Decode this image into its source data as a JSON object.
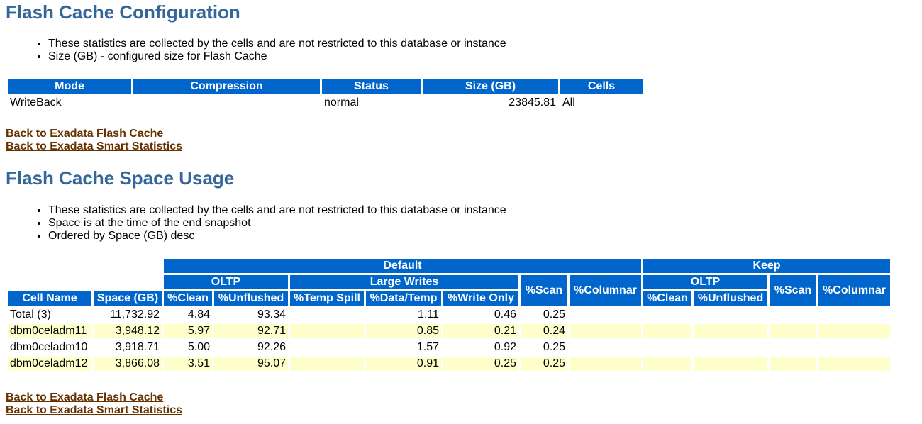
{
  "config": {
    "title": "Flash Cache Configuration",
    "notes": [
      "These statistics are collected by the cells and are not restricted to this database or instance",
      "Size (GB) - configured size for Flash Cache"
    ],
    "headers": [
      "Mode",
      "Compression",
      "Status",
      "Size (GB)",
      "Cells"
    ],
    "row": {
      "mode": "WriteBack",
      "compression": "",
      "status": "normal",
      "size": "23845.81",
      "cells": "All"
    },
    "links": [
      "Back to Exadata Flash Cache",
      "Back to Exadata Smart Statistics"
    ]
  },
  "space": {
    "title": "Flash Cache Space Usage",
    "notes": [
      "These statistics are collected by the cells and are not restricted to this database or instance",
      "Space is at the time of the end snapshot",
      "Ordered by Space (GB) desc"
    ],
    "group_headers": {
      "default": "Default",
      "keep": "Keep",
      "oltp": "OLTP",
      "large_writes": "Large Writes",
      "keep_oltp": "OLTP"
    },
    "col_headers": {
      "cell_name": "Cell Name",
      "space": "Space (GB)",
      "clean": "%Clean",
      "unflushed": "%Unflushed",
      "temp_spill": "%Temp Spill",
      "data_temp": "%Data/Temp",
      "write_only": "%Write Only",
      "scan": "%Scan",
      "columnar": "%Columnar",
      "keep_clean": "%Clean",
      "keep_unflushed": "%Unflushed",
      "keep_scan": "%Scan",
      "keep_columnar": "%Columnar"
    },
    "rows": [
      {
        "cell": "Total (3)",
        "space": "11,732.92",
        "clean": "4.84",
        "unflushed": "93.34",
        "temp_spill": "",
        "data_temp": "1.11",
        "write_only": "0.46",
        "scan": "0.25",
        "columnar": "",
        "k_clean": "",
        "k_unflushed": "",
        "k_scan": "",
        "k_columnar": ""
      },
      {
        "cell": "dbm0celadm11",
        "space": "3,948.12",
        "clean": "5.97",
        "unflushed": "92.71",
        "temp_spill": "",
        "data_temp": "0.85",
        "write_only": "0.21",
        "scan": "0.24",
        "columnar": "",
        "k_clean": "",
        "k_unflushed": "",
        "k_scan": "",
        "k_columnar": ""
      },
      {
        "cell": "dbm0celadm10",
        "space": "3,918.71",
        "clean": "5.00",
        "unflushed": "92.26",
        "temp_spill": "",
        "data_temp": "1.57",
        "write_only": "0.92",
        "scan": "0.25",
        "columnar": "",
        "k_clean": "",
        "k_unflushed": "",
        "k_scan": "",
        "k_columnar": ""
      },
      {
        "cell": "dbm0celadm12",
        "space": "3,866.08",
        "clean": "3.51",
        "unflushed": "95.07",
        "temp_spill": "",
        "data_temp": "0.91",
        "write_only": "0.25",
        "scan": "0.25",
        "columnar": "",
        "k_clean": "",
        "k_unflushed": "",
        "k_scan": "",
        "k_columnar": ""
      }
    ],
    "links": [
      "Back to Exadata Flash Cache",
      "Back to Exadata Smart Statistics"
    ]
  }
}
